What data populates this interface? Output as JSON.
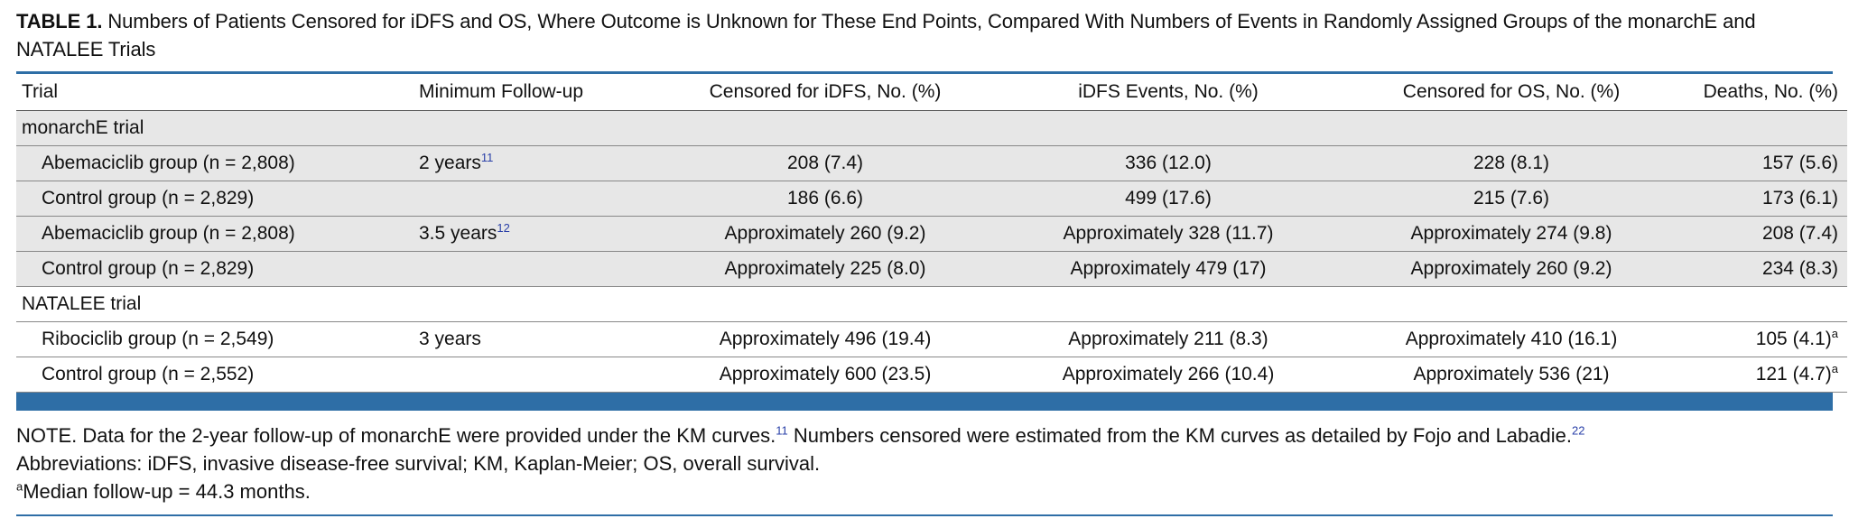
{
  "caption": {
    "label": "TABLE 1.",
    "text": "Numbers of Patients Censored for iDFS and OS, Where Outcome is Unknown for These End Points, Compared With Numbers of Events in Randomly Assigned Groups of the monarchE and NATALEE Trials"
  },
  "columns": [
    "Trial",
    "Minimum Follow-up",
    "Censored for iDFS, No. (%)",
    "iDFS Events, No. (%)",
    "Censored for OS, No. (%)",
    "Deaths, No. (%)"
  ],
  "sections": [
    {
      "title": "monarchE trial",
      "rows": [
        {
          "group": "Abemaciclib group (n = 2,808)",
          "followup": "2 years",
          "followup_ref": "11",
          "censored_idfs": "208 (7.4)",
          "idfs_events": "336 (12.0)",
          "censored_os": "228 (8.1)",
          "deaths": "157 (5.6)",
          "deaths_mark": ""
        },
        {
          "group": "Control group (n = 2,829)",
          "followup": "",
          "followup_ref": "",
          "censored_idfs": "186 (6.6)",
          "idfs_events": "499 (17.6)",
          "censored_os": "215 (7.6)",
          "deaths": "173 (6.1)",
          "deaths_mark": ""
        },
        {
          "group": "Abemaciclib group (n = 2,808)",
          "followup": "3.5 years",
          "followup_ref": "12",
          "censored_idfs": "Approximately 260 (9.2)",
          "idfs_events": "Approximately 328 (11.7)",
          "censored_os": "Approximately 274 (9.8)",
          "deaths": "208 (7.4)",
          "deaths_mark": ""
        },
        {
          "group": "Control group (n = 2,829)",
          "followup": "",
          "followup_ref": "",
          "censored_idfs": "Approximately 225 (8.0)",
          "idfs_events": "Approximately 479 (17)",
          "censored_os": "Approximately 260 (9.2)",
          "deaths": "234 (8.3)",
          "deaths_mark": ""
        }
      ]
    },
    {
      "title": "NATALEE trial",
      "rows": [
        {
          "group": "Ribociclib group (n = 2,549)",
          "followup": "3 years",
          "followup_ref": "",
          "censored_idfs": "Approximately 496 (19.4)",
          "idfs_events": "Approximately 211 (8.3)",
          "censored_os": "Approximately 410 (16.1)",
          "deaths": "105 (4.1)",
          "deaths_mark": "a"
        },
        {
          "group": "Control group (n = 2,552)",
          "followup": "",
          "followup_ref": "",
          "censored_idfs": "Approximately 600 (23.5)",
          "idfs_events": "Approximately 266 (10.4)",
          "censored_os": "Approximately 536 (21)",
          "deaths": "121 (4.7)",
          "deaths_mark": "a"
        }
      ]
    }
  ],
  "notes": {
    "note_part1": "NOTE. Data for the 2-year follow-up of monarchE were provided under the KM curves.",
    "note_ref1": "11",
    "note_part2": " Numbers censored were estimated from the KM curves as detailed by Fojo and Labadie.",
    "note_ref2": "22",
    "abbreviations": "Abbreviations: iDFS, invasive disease-free survival; KM, Kaplan-Meier; OS, overall survival.",
    "footnote_mark": "a",
    "footnote_text": "Median follow-up = 44.3 months."
  },
  "colors": {
    "rule": "#2e6ea6",
    "shade": "#e7e7e7",
    "ref_link": "#2a40a8"
  }
}
